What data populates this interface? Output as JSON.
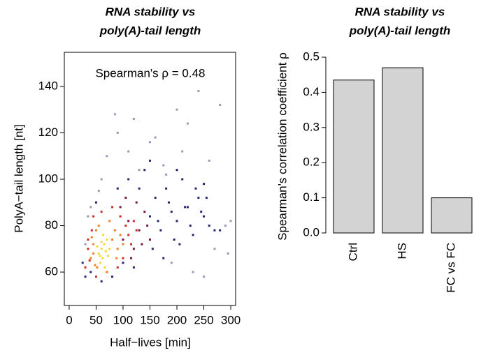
{
  "chart_data": [
    {
      "type": "scatter",
      "title": [
        "RNA stability  vs",
        "poly(A)-tail length"
      ],
      "annotation": "Spearman's ρ = 0.48",
      "xlabel": "Half−lives [min]",
      "ylabel": "PolyA−tail length [nt]",
      "xlim": [
        -9,
        309
      ],
      "ylim": [
        45.6,
        154.7
      ],
      "xticks": [
        0,
        50,
        100,
        150,
        200,
        250,
        300
      ],
      "yticks": [
        60,
        80,
        100,
        120,
        140
      ],
      "series": [
        {
          "color": "#9a9ab8",
          "x": [
            30,
            40,
            55,
            70,
            90,
            110,
            130,
            160,
            180,
            200,
            220,
            240,
            260,
            280,
            290,
            300,
            230,
            270,
            250,
            190,
            150,
            120,
            85,
            60,
            35,
            210,
            175,
            295
          ],
          "values": [
            72,
            88,
            95,
            110,
            120,
            112,
            104,
            118,
            102,
            130,
            124,
            138,
            108,
            132,
            80,
            82,
            60,
            70,
            58,
            64,
            116,
            126,
            128,
            100,
            84,
            112,
            106,
            68
          ]
        },
        {
          "color": "#26266e",
          "x": [
            25,
            30,
            40,
            150,
            160,
            170,
            180,
            190,
            200,
            210,
            220,
            230,
            240,
            250,
            260,
            270,
            155,
            175,
            195,
            215,
            235,
            60,
            80,
            110,
            130,
            140,
            165,
            185,
            205,
            225,
            245,
            255,
            100,
            120,
            90,
            50,
            150,
            200,
            250,
            280
          ],
          "values": [
            64,
            58,
            60,
            84,
            92,
            78,
            96,
            86,
            82,
            100,
            88,
            76,
            92,
            84,
            80,
            78,
            70,
            66,
            74,
            88,
            96,
            56,
            58,
            100,
            96,
            104,
            82,
            90,
            72,
            80,
            86,
            92,
            64,
            62,
            96,
            90,
            108,
            104,
            98,
            78
          ]
        },
        {
          "color": "#7a1444",
          "x": [
            100,
            110,
            120,
            130,
            140,
            135,
            125,
            115,
            145,
            150,
            105,
            95
          ],
          "values": [
            74,
            82,
            70,
            78,
            86,
            72,
            90,
            66,
            80,
            74,
            92,
            88
          ]
        },
        {
          "color": "#d42a24",
          "x": [
            30,
            35,
            38,
            42,
            105,
            110,
            95,
            115,
            60,
            80,
            50,
            120,
            35,
            90,
            70,
            125,
            45,
            100
          ],
          "values": [
            62,
            70,
            65,
            78,
            80,
            76,
            84,
            72,
            86,
            88,
            58,
            82,
            74,
            62,
            60,
            78,
            84,
            66
          ]
        },
        {
          "color": "#f08424",
          "x": [
            40,
            45,
            48,
            50,
            80,
            85,
            90,
            45,
            55,
            75,
            95,
            42,
            70,
            88,
            100,
            52
          ],
          "values": [
            66,
            72,
            63,
            78,
            74,
            78,
            70,
            68,
            80,
            82,
            76,
            75,
            60,
            66,
            72,
            62
          ]
        },
        {
          "color": "#f7d83a",
          "x": [
            55,
            60,
            62,
            65,
            68,
            70,
            58,
            52,
            72,
            63,
            66,
            75,
            60,
            57
          ],
          "values": [
            68,
            70,
            66,
            72,
            69,
            74,
            64,
            71,
            67,
            76,
            62,
            70,
            73,
            67
          ]
        }
      ]
    },
    {
      "type": "bar",
      "title": [
        "RNA stability  vs",
        "poly(A)-tail length"
      ],
      "ylabel": "Spearman's correlation coefficient ρ",
      "categories": [
        "Ctrl",
        "HS",
        "FC vs FC"
      ],
      "values": [
        0.435,
        0.47,
        0.1
      ],
      "color": "#d3d3d3",
      "ylim": [
        0,
        0.5
      ],
      "yticks": [
        {
          "value": 0,
          "label": "0.0"
        },
        0.1,
        0.2,
        0.3,
        0.4,
        0.5
      ]
    }
  ]
}
